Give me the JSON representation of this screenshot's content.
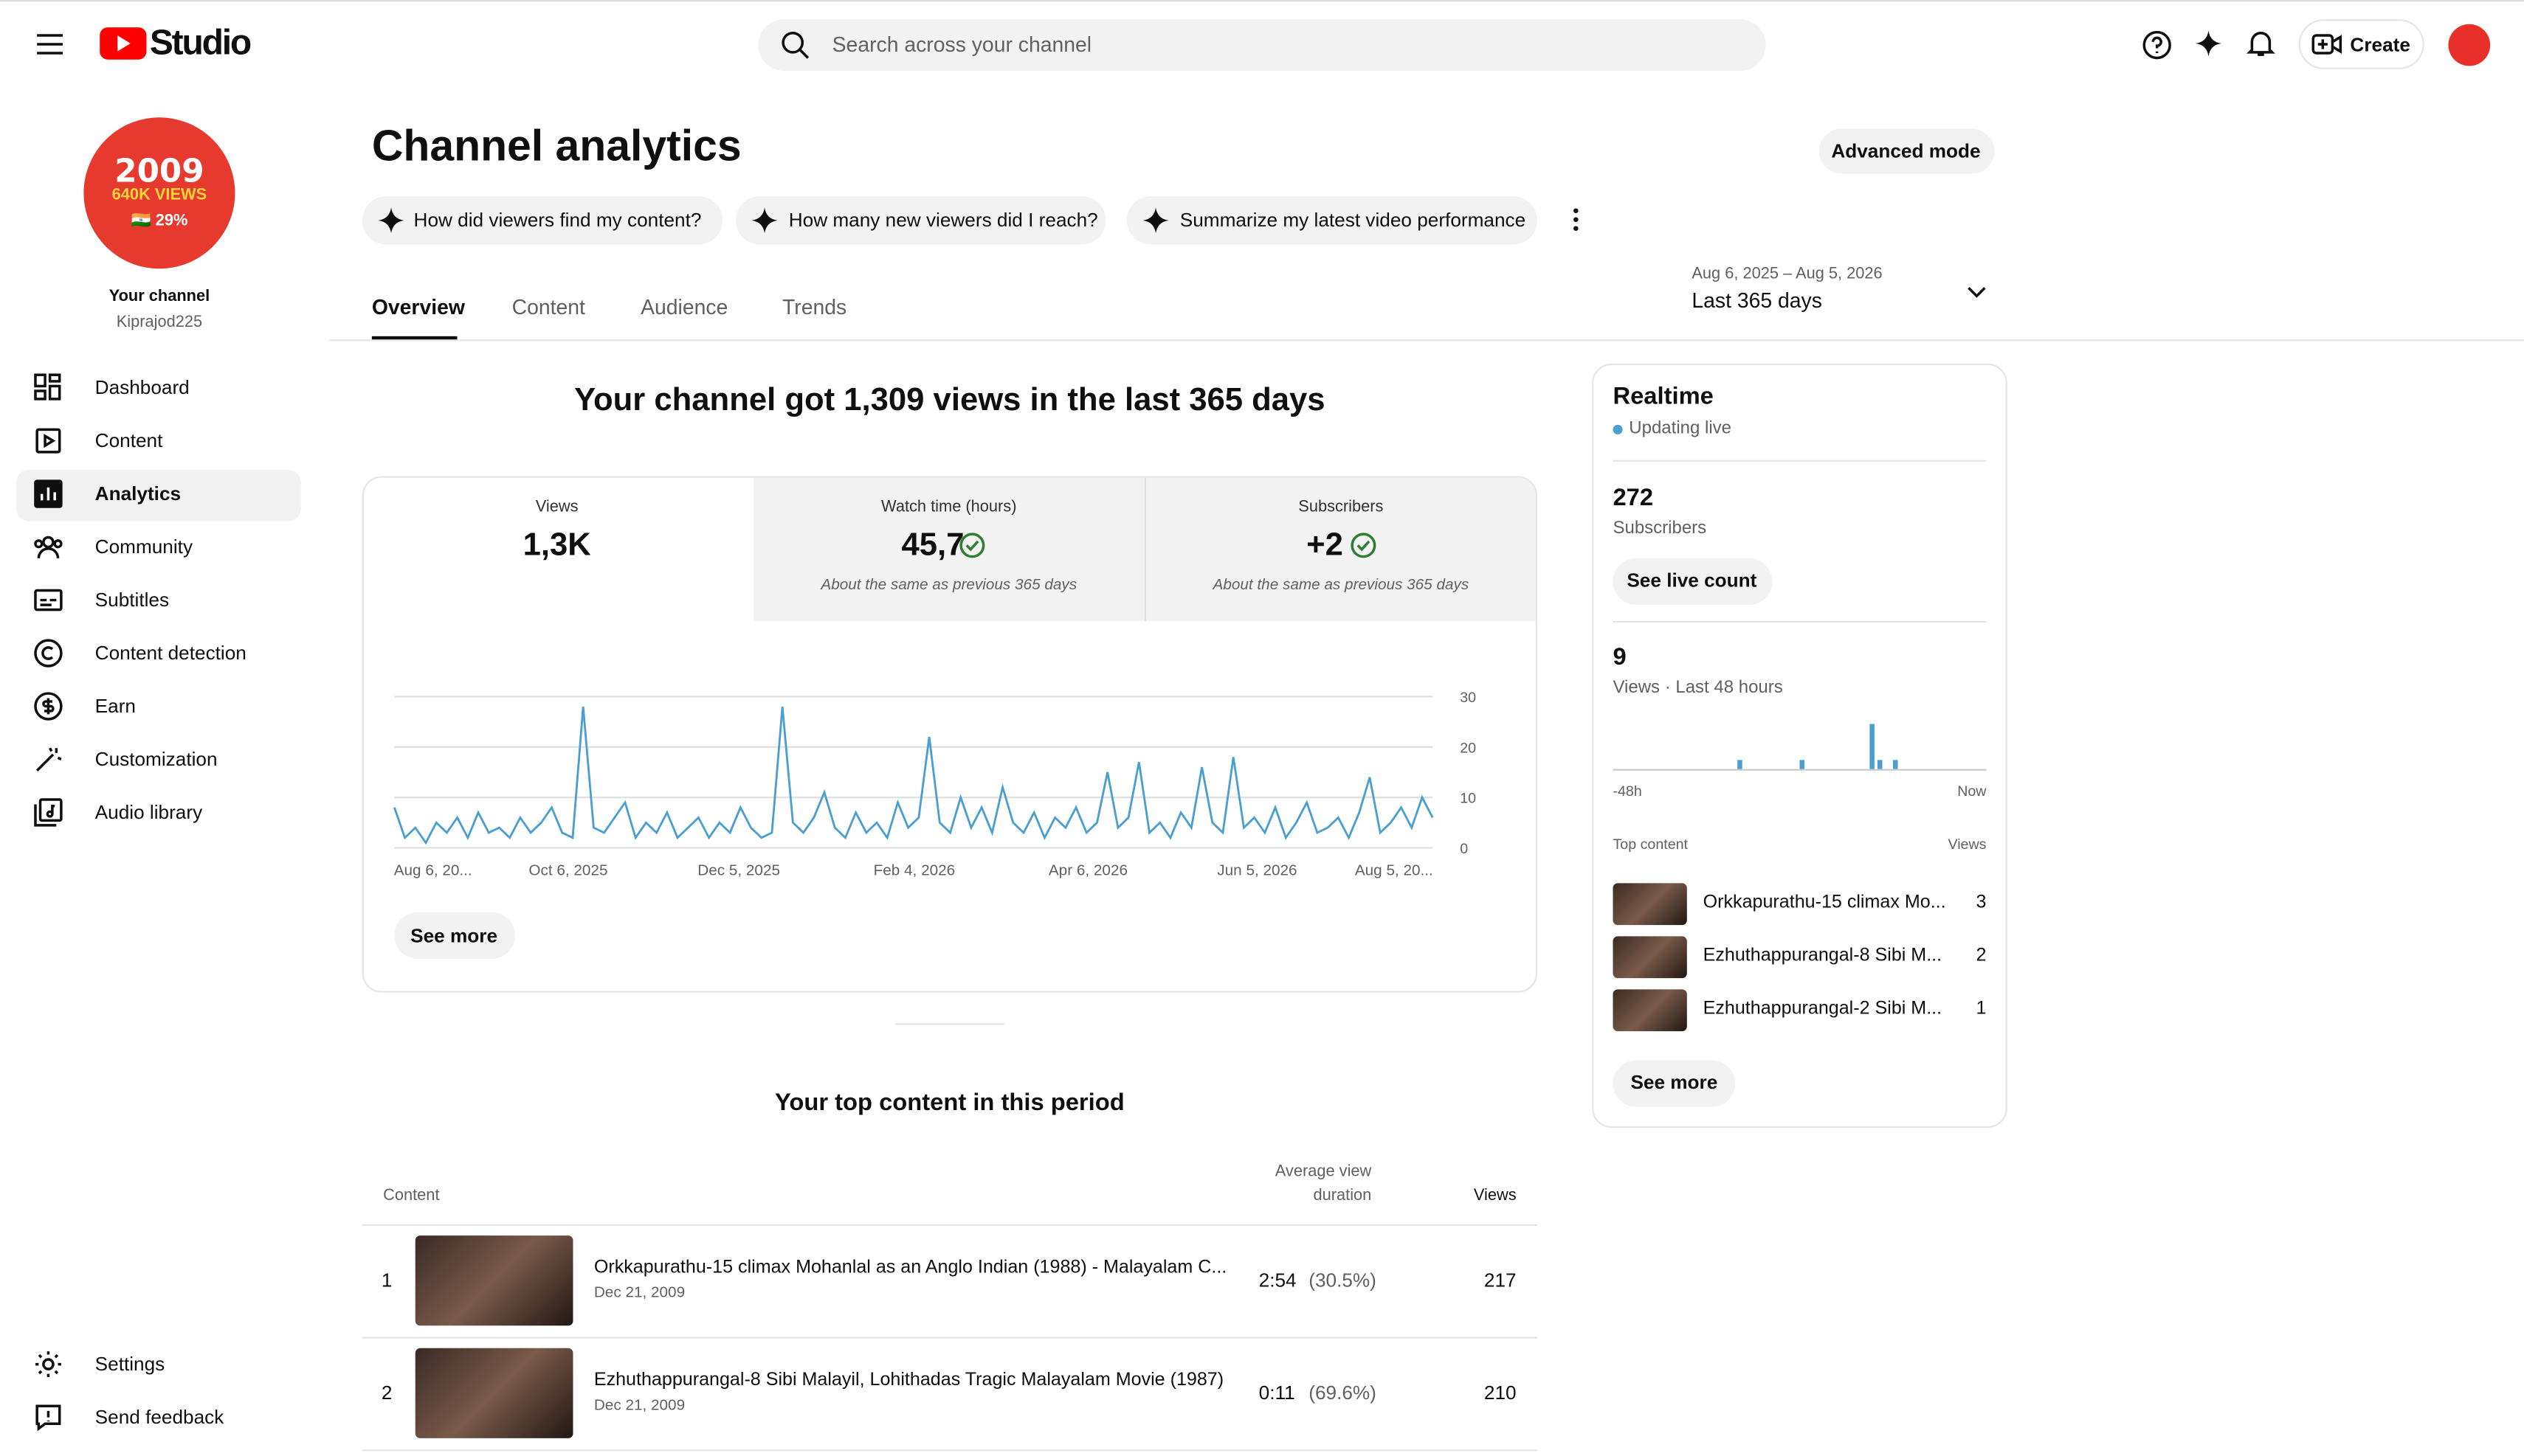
{
  "header": {
    "logo": "Studio",
    "search_placeholder": "Search across your channel",
    "create": "Create"
  },
  "sidebar": {
    "avatar_lines": [
      "2009",
      "640K VIEWS",
      "🇮🇳 29%"
    ],
    "channel_label": "Your channel",
    "channel_name": "Kiprajod225",
    "nav": [
      "Dashboard",
      "Content",
      "Analytics",
      "Community",
      "Subtitles",
      "Content detection",
      "Earn",
      "Customization",
      "Audio library"
    ],
    "bottom": [
      "Settings",
      "Send feedback"
    ]
  },
  "page": {
    "title": "Channel analytics",
    "advanced": "Advanced mode",
    "prompts": [
      "How did viewers find my content?",
      "How many new viewers did I reach?",
      "Summarize my latest video performance"
    ],
    "tabs": [
      "Overview",
      "Content",
      "Audience",
      "Trends"
    ],
    "date_range": "Aug 6, 2025 – Aug 5, 2026",
    "period": "Last 365 days",
    "headline": "Your channel got 1,309 views in the last 365 days"
  },
  "metrics": [
    {
      "label": "Views",
      "value": "1,3K"
    },
    {
      "label": "Watch time (hours)",
      "value": "45,7",
      "note": "About the same as previous 365 days"
    },
    {
      "label": "Subscribers",
      "value": "+2",
      "note": "About the same as previous 365 days"
    }
  ],
  "views_chart": {
    "type": "line",
    "color": "#4a9fd0",
    "ylim": [
      0,
      30
    ],
    "yticks": [
      0,
      10,
      20,
      30
    ],
    "grid": true,
    "x_labels": [
      "Aug 6, 20...",
      "Oct 6, 2025",
      "Dec 5, 2025",
      "Feb 4, 2026",
      "Apr 6, 2026",
      "Jun 5, 2026",
      "Aug 5, 20..."
    ],
    "values": [
      8,
      2,
      4,
      1,
      5,
      3,
      6,
      2,
      7,
      3,
      4,
      2,
      6,
      3,
      5,
      8,
      3,
      2,
      28,
      4,
      3,
      6,
      9,
      2,
      5,
      3,
      7,
      2,
      4,
      6,
      2,
      5,
      3,
      8,
      4,
      2,
      3,
      28,
      5,
      3,
      6,
      11,
      4,
      2,
      7,
      3,
      5,
      2,
      9,
      4,
      6,
      22,
      5,
      3,
      10,
      4,
      8,
      3,
      12,
      5,
      3,
      7,
      2,
      6,
      4,
      8,
      3,
      5,
      15,
      4,
      6,
      17,
      3,
      5,
      2,
      7,
      4,
      16,
      5,
      3,
      18,
      4,
      6,
      3,
      8,
      2,
      5,
      9,
      3,
      4,
      6,
      2,
      7,
      14,
      3,
      5,
      8,
      4,
      10,
      6
    ],
    "see_more": "See more"
  },
  "top_content": {
    "title": "Your top content in this period",
    "headers": {
      "content": "Content",
      "duration": [
        "Average view",
        "duration"
      ],
      "views": "Views"
    },
    "rows": [
      {
        "rank": 1,
        "title": "Orkkapurathu-15 climax Mohanlal as an Anglo Indian (1988) - Malayalam C...",
        "date": "Dec 21, 2009",
        "duration": "2:54",
        "percent": "(30.5%)",
        "views": 217
      },
      {
        "rank": 2,
        "title": "Ezhuthappurangal-8 Sibi Malayil, Lohithadas Tragic Malayalam Movie (1987)",
        "date": "Dec 21, 2009",
        "duration": "0:11",
        "percent": "(69.6%)",
        "views": 210
      }
    ]
  },
  "realtime": {
    "title": "Realtime",
    "status": "Updating live",
    "subscribers": 272,
    "subscribers_label": "Subscribers",
    "live_button": "See live count",
    "views": 9,
    "views_label": "Views · Last 48 hours",
    "chart": {
      "type": "bar",
      "color": "#4a9fd0",
      "values": [
        0,
        0,
        0,
        0,
        0,
        0,
        0,
        0,
        0,
        0,
        0,
        0,
        0,
        0,
        0,
        0,
        1,
        0,
        0,
        0,
        0,
        0,
        0,
        0,
        1,
        0,
        0,
        0,
        0,
        0,
        0,
        0,
        0,
        5,
        1,
        0,
        1,
        0,
        0,
        0,
        0,
        0,
        0,
        0,
        0,
        0,
        0,
        0
      ],
      "start_label": "-48h",
      "end_label": "Now"
    },
    "top_header": "Top content",
    "views_header": "Views",
    "items": [
      {
        "title": "Orkkapurathu-15 climax Mo...",
        "views": 3
      },
      {
        "title": "Ezhuthappurangal-8 Sibi M...",
        "views": 2
      },
      {
        "title": "Ezhuthappurangal-2 Sibi M...",
        "views": 1
      }
    ],
    "see_more": "See more"
  }
}
